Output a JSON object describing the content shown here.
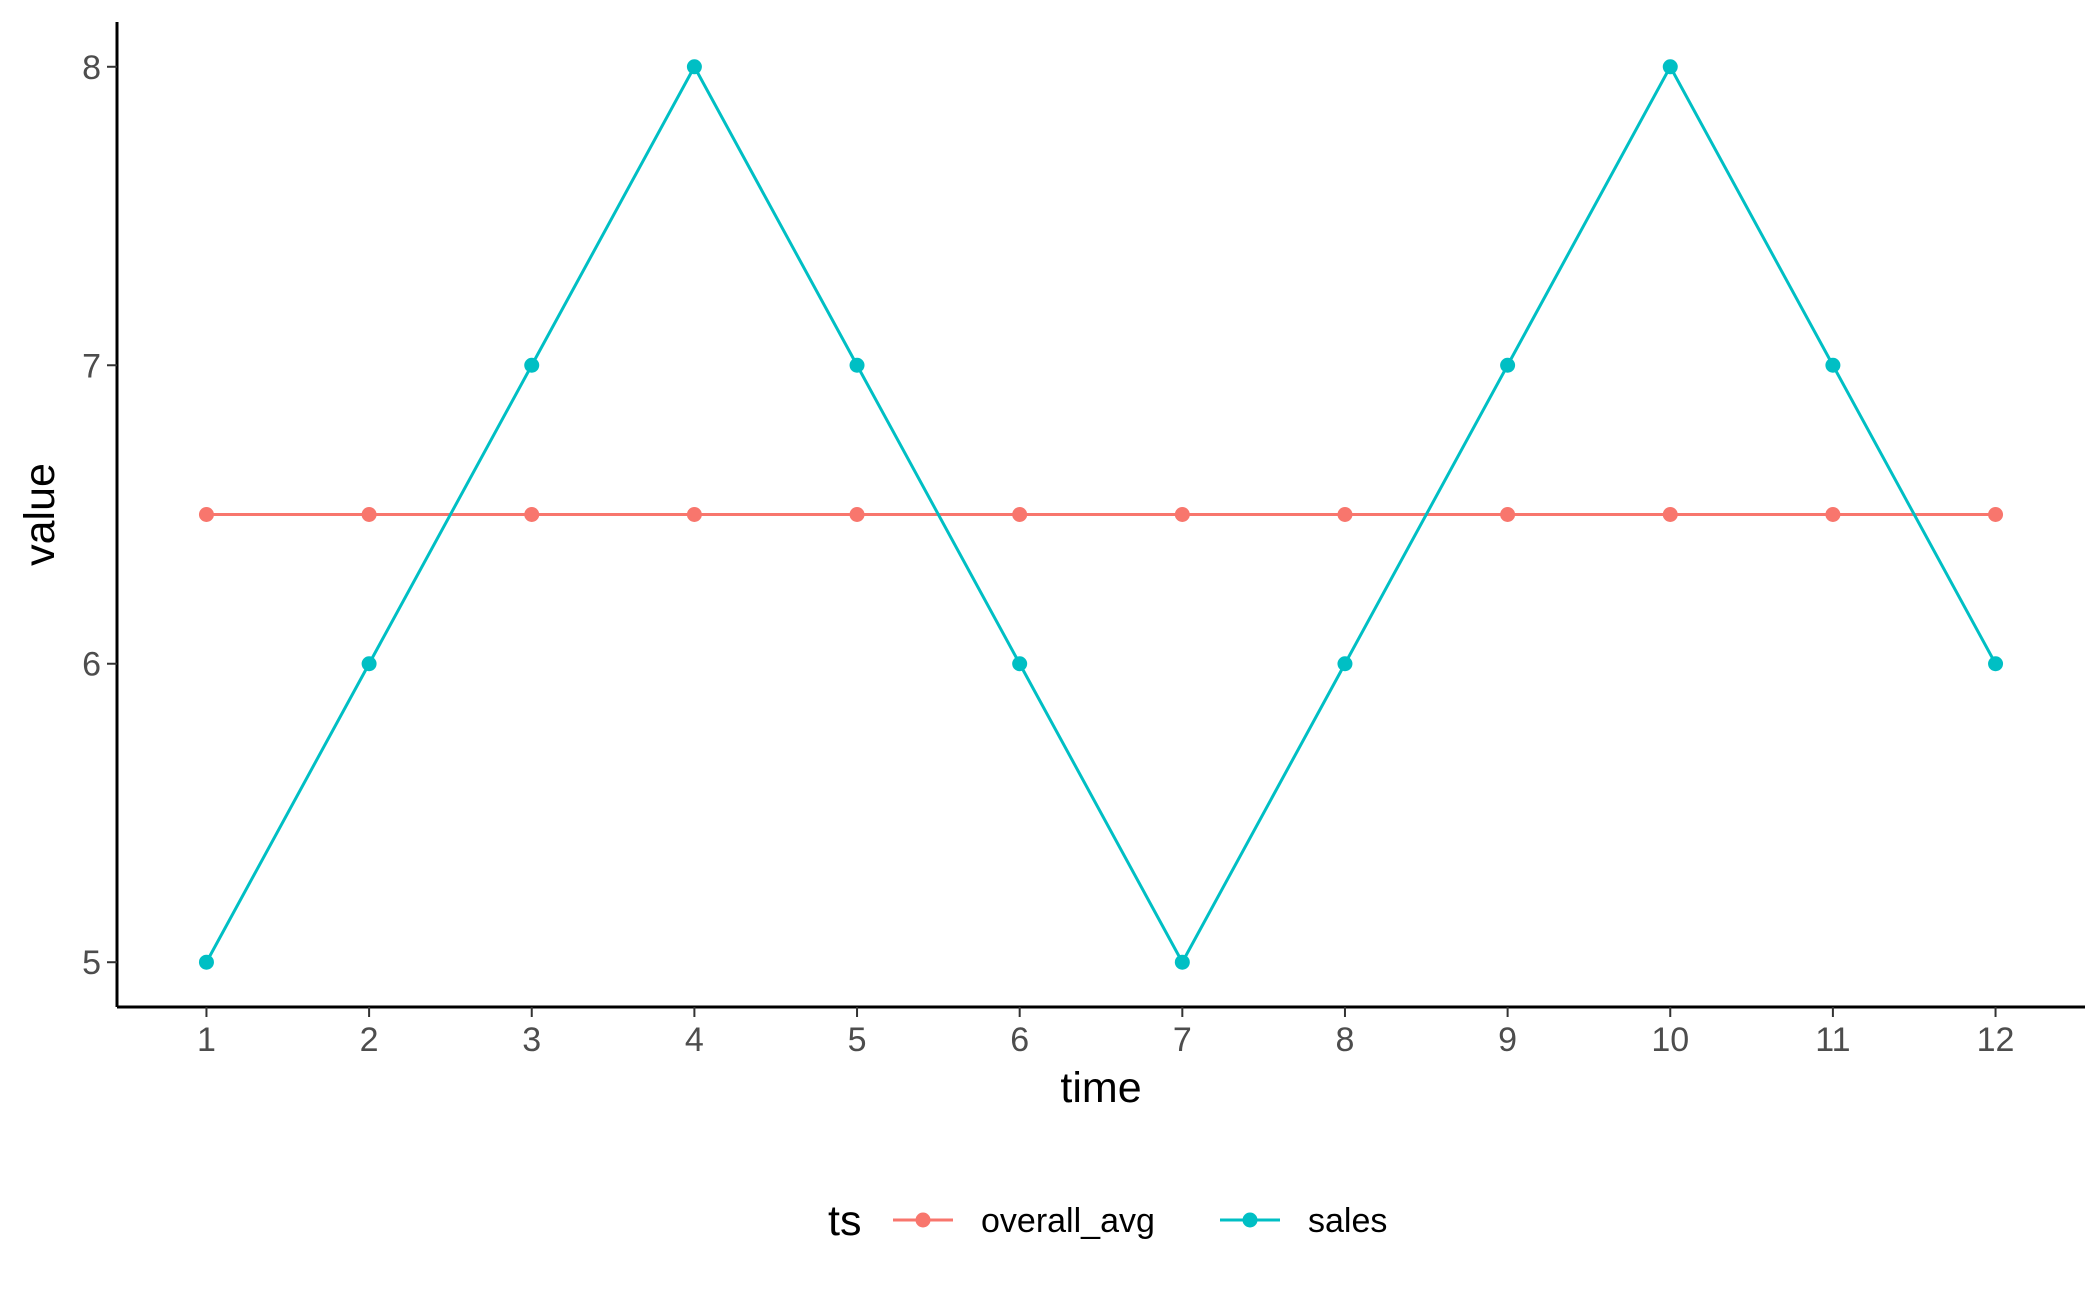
{
  "chart_data": {
    "type": "line",
    "xlabel": "time",
    "ylabel": "value",
    "x": [
      1,
      2,
      3,
      4,
      5,
      6,
      7,
      8,
      9,
      10,
      11,
      12
    ],
    "x_ticks": [
      "1",
      "2",
      "3",
      "4",
      "5",
      "6",
      "7",
      "8",
      "9",
      "10",
      "11",
      "12"
    ],
    "y_ticks": [
      "5",
      "6",
      "7",
      "8"
    ],
    "xlim": [
      0.45,
      12.55
    ],
    "ylim": [
      4.85,
      8.15
    ],
    "grid": false,
    "legend": {
      "title": "ts",
      "position": "bottom"
    },
    "series": [
      {
        "name": "overall_avg",
        "color": "#F8766D",
        "values": [
          6.5,
          6.5,
          6.5,
          6.5,
          6.5,
          6.5,
          6.5,
          6.5,
          6.5,
          6.5,
          6.5,
          6.5
        ]
      },
      {
        "name": "sales",
        "color": "#00BFC4",
        "values": [
          5,
          6,
          7,
          8,
          7,
          6,
          5,
          6,
          7,
          8,
          7,
          6
        ]
      }
    ]
  }
}
